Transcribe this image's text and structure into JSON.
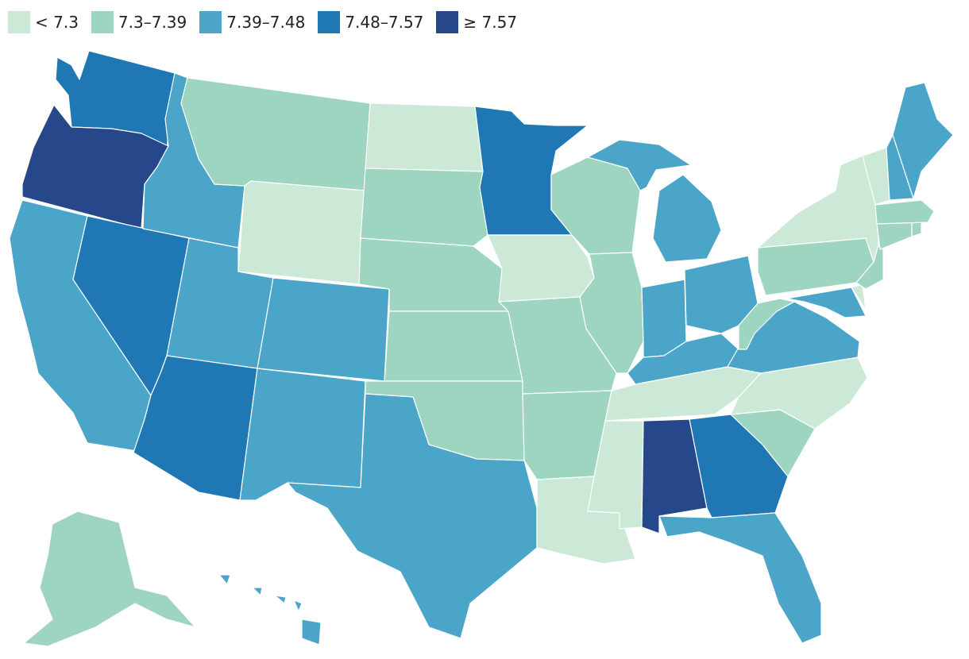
{
  "legend": {
    "items": [
      {
        "label": "< 7.3",
        "color": "#cbe9d6"
      },
      {
        "label": "7.3–7.39",
        "color": "#9dd5c0"
      },
      {
        "label": "7.39–7.48",
        "color": "#4aa5c9"
      },
      {
        "label": "7.48–7.57",
        "color": "#1f77b4"
      },
      {
        "label": "≥ 7.57",
        "color": "#26488a"
      }
    ]
  },
  "map": {
    "type": "choropleth",
    "region": "United States",
    "states": {
      "WA": 3,
      "OR": 4,
      "CA": 2,
      "NV": 3,
      "ID": 2,
      "MT": 1,
      "WY": 0,
      "UT": 2,
      "AZ": 3,
      "CO": 2,
      "NM": 2,
      "ND": 0,
      "SD": 1,
      "NE": 1,
      "KS": 1,
      "OK": 1,
      "TX": 2,
      "MN": 3,
      "IA": 0,
      "MO": 1,
      "AR": 1,
      "LA": 0,
      "WI": 1,
      "IL": 1,
      "MI": 2,
      "IN": 2,
      "OH": 2,
      "KY": 2,
      "TN": 0,
      "MS": 0,
      "AL": 4,
      "GA": 3,
      "FL": 2,
      "SC": 1,
      "NC": 0,
      "VA": 2,
      "WV": 1,
      "MD": 2,
      "DE": 0,
      "PA": 1,
      "NJ": 1,
      "NY": 0,
      "CT": 1,
      "RI": 1,
      "MA": 1,
      "VT": 0,
      "NH": 2,
      "ME": 2,
      "AK": 1,
      "HI": 2
    }
  }
}
